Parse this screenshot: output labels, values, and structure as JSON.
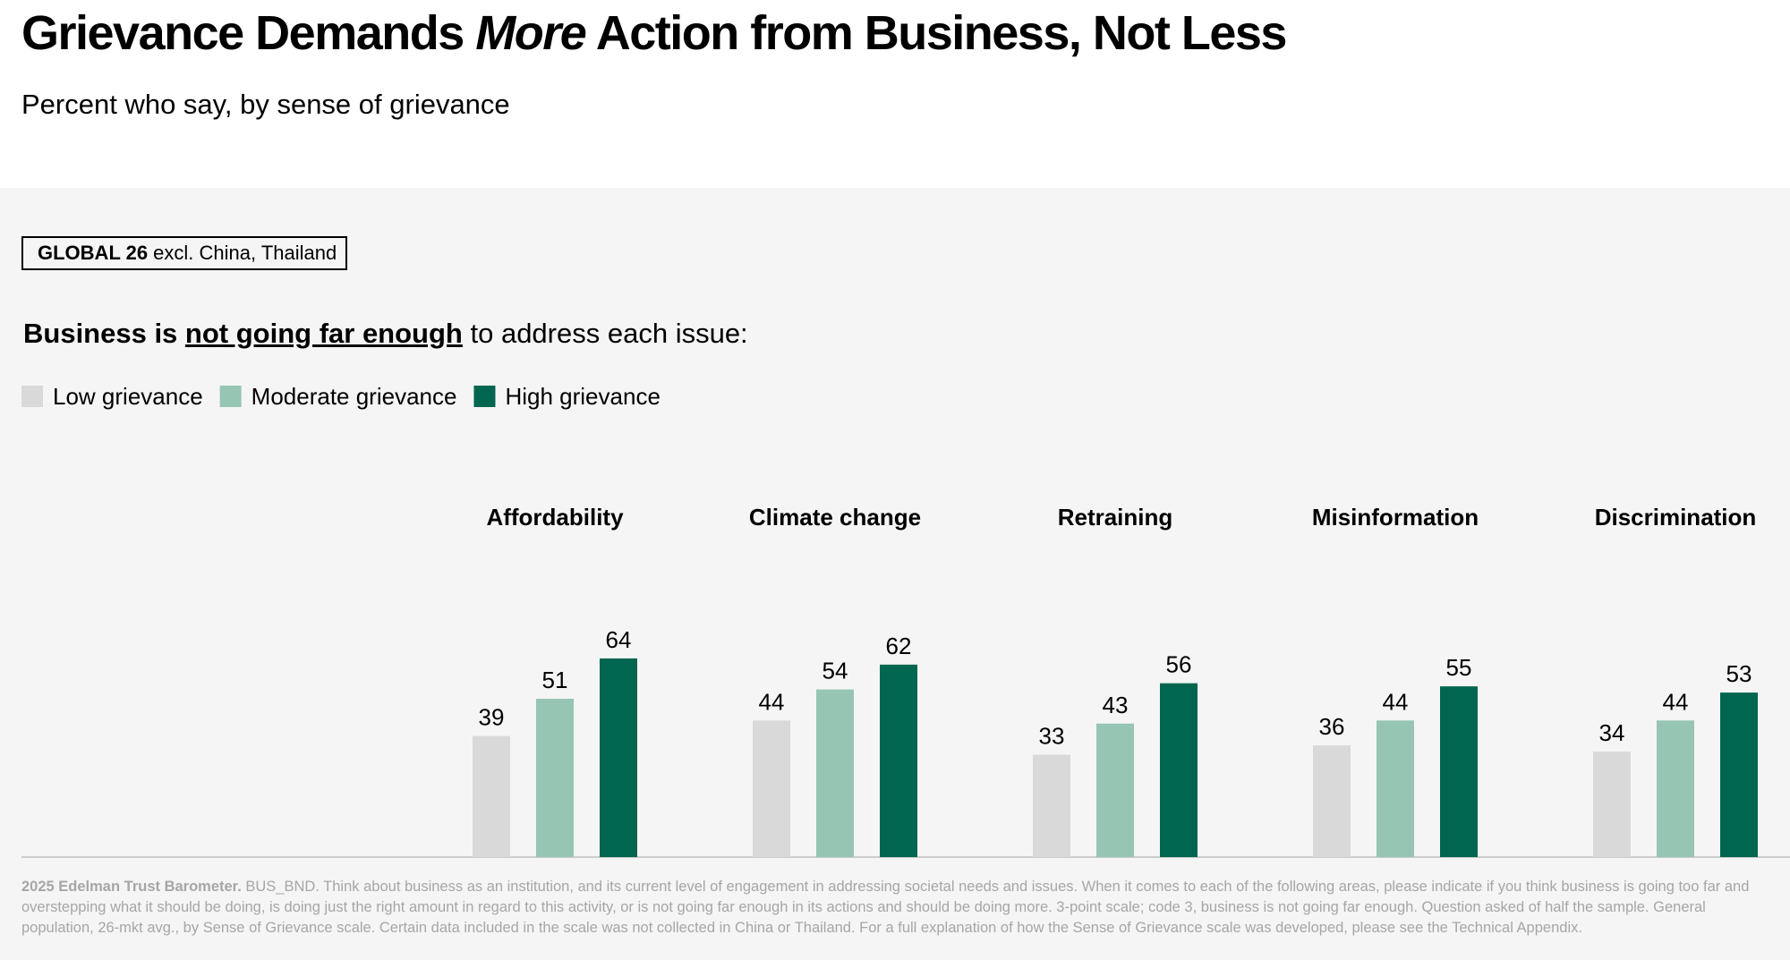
{
  "header": {
    "title": [
      "Grievance Demands ",
      "More",
      " Action from Business, Not Less"
    ],
    "subtitle": "Percent who say, by sense of grievance"
  },
  "filter": [
    "GLOBAL 26",
    " excl. China, Thailand"
  ],
  "chart_data": {
    "type": "bar",
    "heading": [
      "Business is ",
      "not going far enough",
      " to address each issue:"
    ],
    "categories": [
      "Affordability",
      "Climate change",
      "Retraining",
      "Misinformation",
      "Discrimination"
    ],
    "series": [
      {
        "name": "Low grievance",
        "color": "#d9d9d9",
        "values": [
          39,
          44,
          33,
          36,
          34
        ]
      },
      {
        "name": "Moderate grievance",
        "color": "#96c5b4",
        "values": [
          51,
          54,
          43,
          44,
          44
        ]
      },
      {
        "name": "High grievance",
        "color": "#00664f",
        "values": [
          64,
          62,
          56,
          55,
          53
        ]
      }
    ]
  },
  "footnote": [
    "2025 Edelman Trust Barometer.",
    " BUS_BND. Think about business as an institution, and its current level of engagement in addressing societal needs and issues. When it comes to each of the following areas, please indicate if you think business is going too far and overstepping what it should be doing, is doing just the right amount in regard to this activity, or is not going far enough in its actions and should be doing more. 3-point scale; code 3, business is not going far enough. Question asked of half the sample. General population, 26-mkt avg., by Sense of Grievance scale. Certain data included in the scale was not collected in China or Thailand. For a full explanation of how the Sense of Grievance scale was developed, please see the Technical Appendix."
  ]
}
